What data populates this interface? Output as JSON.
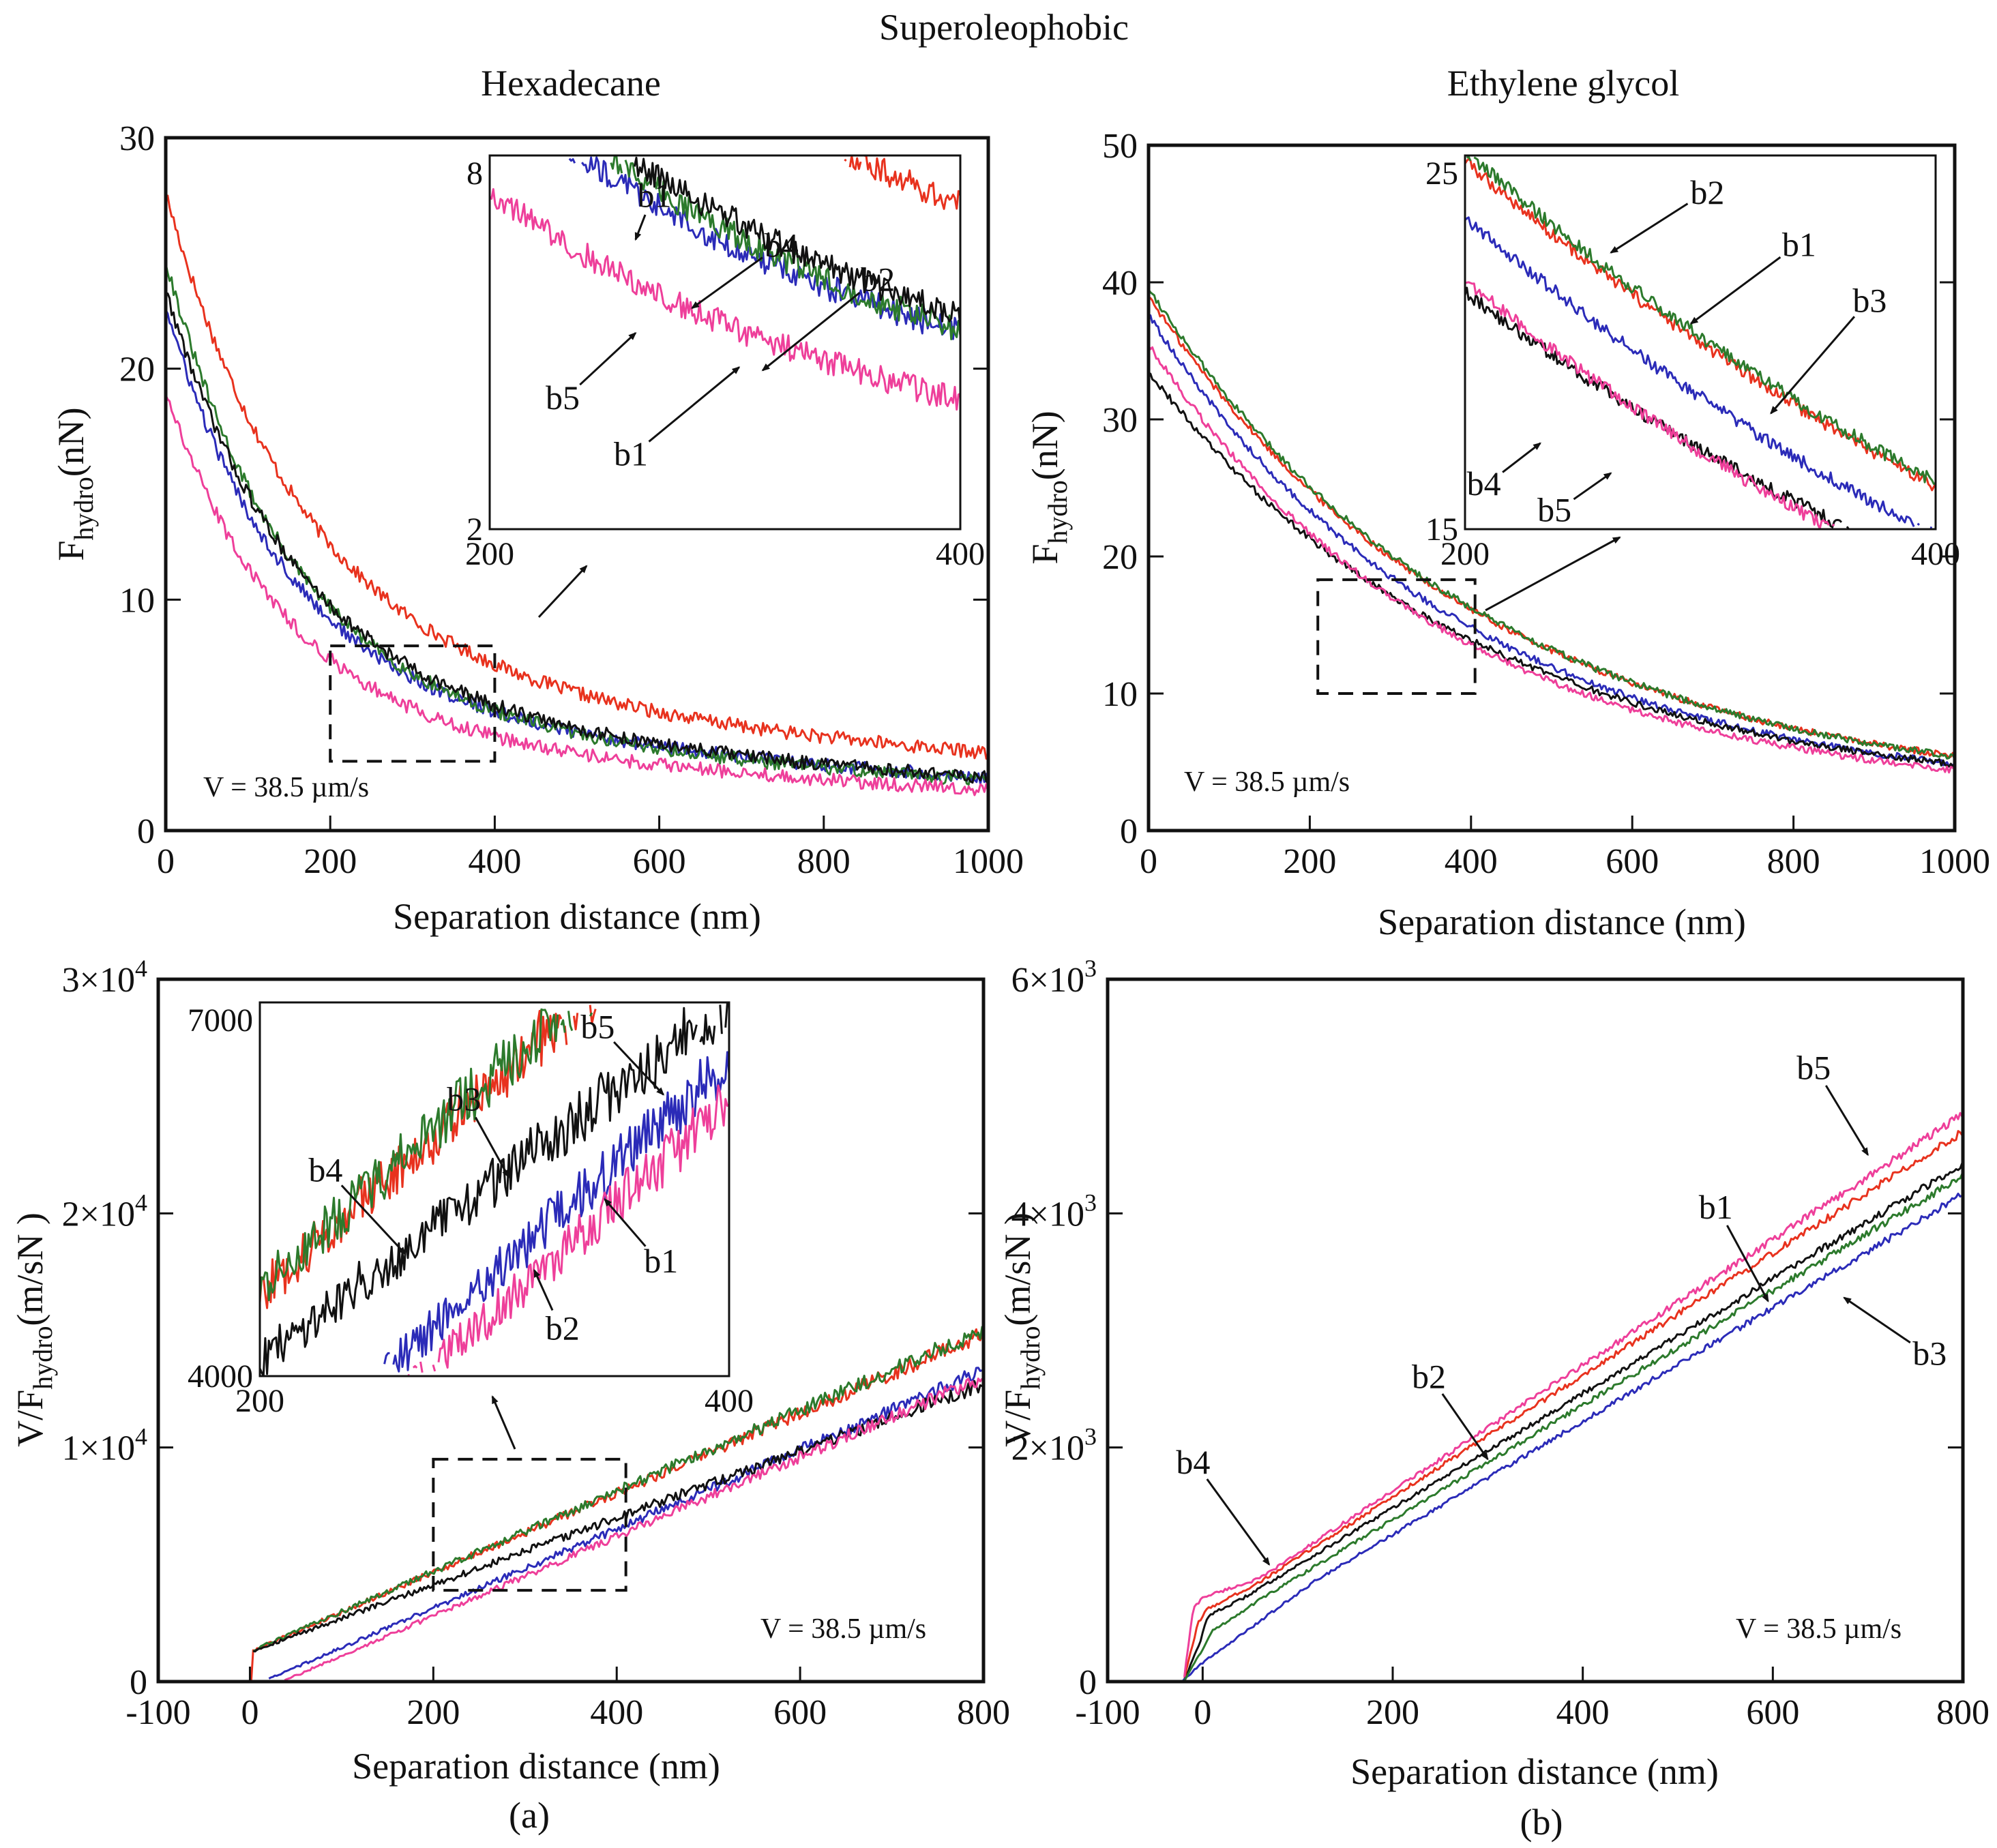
{
  "figure": {
    "title": "Superoleophobic",
    "panel_labels": [
      "(a)",
      "(b)"
    ]
  },
  "chart_data": [
    {
      "type": "line",
      "id": "top-left",
      "title": "Hexadecane",
      "xlabel": "Separation distance (nm)",
      "ylabel_main": "F",
      "ylabel_sub": "hydro",
      "ylabel_unit": "(nN)",
      "xlim": [
        0,
        1000
      ],
      "ylim": [
        0,
        30
      ],
      "xticks": [
        0,
        200,
        400,
        600,
        800,
        1000
      ],
      "xtick_labels": [
        "0",
        "200",
        "400",
        "600",
        "800",
        "1000"
      ],
      "yticks": [
        0,
        10,
        20,
        30
      ],
      "ytick_labels": [
        "0",
        "10",
        "20",
        "30"
      ],
      "annotation": "V = 38.5  µm/s",
      "zoom_box": {
        "x": [
          200,
          400
        ],
        "y": [
          3,
          8
        ]
      },
      "series": [
        {
          "name": "b1",
          "color": "#e8321e",
          "model": "decay",
          "params": [
            20.2,
            0.006,
            7.4,
            7.1,
            0.0008,
            0.3
          ]
        },
        {
          "name": "b2",
          "color": "#2b2bb8",
          "model": "decay",
          "params": [
            16.5,
            0.007,
            6.2,
            6.7,
            0.001,
            0.3
          ]
        },
        {
          "name": "b3",
          "color": "#2c7a2c",
          "model": "decay",
          "params": [
            18.8,
            0.0068,
            5.9,
            7.2,
            0.001,
            0.3
          ]
        },
        {
          "name": "b4",
          "color": "#111111",
          "model": "decay",
          "params": [
            17.2,
            0.0065,
            6.2,
            6.8,
            0.001,
            0.3
          ]
        },
        {
          "name": "b5",
          "color": "#ee3f9a",
          "model": "decay",
          "params": [
            14.2,
            0.007,
            4.8,
            6.9,
            0.001,
            0.3
          ]
        }
      ],
      "inset": {
        "xlim": [
          200,
          400
        ],
        "ylim": [
          2,
          8
        ],
        "xticks": [
          200,
          400
        ],
        "xtick_labels": [
          "200",
          "400"
        ],
        "yticks": [
          2,
          8
        ],
        "ytick_labels": [
          "2",
          "8"
        ],
        "labels": [
          {
            "text": "b1",
            "at": [
              270,
              7.35
            ],
            "tip": [
              262,
              6.65
            ]
          },
          {
            "text": "b4",
            "at": [
              324,
              6.55
            ],
            "tip": [
              286,
              5.55
            ]
          },
          {
            "text": "b2",
            "at": [
              365,
              6.0
            ],
            "tip": [
              316,
              4.55
            ]
          },
          {
            "text": "b5",
            "at": [
              231,
              4.1
            ],
            "tip": [
              262,
              5.15
            ]
          },
          {
            "text": "b1",
            "at": [
              260,
              3.2
            ],
            "tip": [
              306,
              4.6
            ]
          }
        ]
      }
    },
    {
      "type": "line",
      "id": "top-right",
      "title": "Ethylene glycol",
      "xlabel": "Separation distance (nm)",
      "ylabel_main": "F",
      "ylabel_sub": "hydro",
      "ylabel_unit": "(nN)",
      "xlim": [
        0,
        1000
      ],
      "ylim": [
        0,
        50
      ],
      "xticks": [
        0,
        200,
        400,
        600,
        800,
        1000
      ],
      "xtick_labels": [
        "0",
        "200",
        "400",
        "600",
        "800",
        "1000"
      ],
      "yticks": [
        0,
        10,
        20,
        30,
        40,
        50
      ],
      "ytick_labels": [
        "0",
        "10",
        "20",
        "30",
        "40",
        "50"
      ],
      "annotation": "V = 38.5  µm/s",
      "zoom_box": {
        "x": [
          210,
          405
        ],
        "y": [
          10,
          18.3
        ]
      },
      "series": [
        {
          "name": "b1",
          "color": "#e8321e",
          "model": "decay",
          "params": [
            39.0,
            0.0024,
            0,
            0,
            0,
            0.25
          ]
        },
        {
          "name": "b2",
          "color": "#2c7a2c",
          "model": "decay",
          "params": [
            39.6,
            0.00242,
            0,
            0,
            0,
            0.25
          ]
        },
        {
          "name": "b3",
          "color": "#2b2bb8",
          "model": "decay",
          "params": [
            37.6,
            0.00254,
            0,
            0,
            0,
            0.25
          ]
        },
        {
          "name": "b4",
          "color": "#111111",
          "model": "decay",
          "params": [
            33.5,
            0.00243,
            0,
            0,
            0,
            0.25
          ]
        },
        {
          "name": "b5",
          "color": "#ee3f9a",
          "model": "decay",
          "params": [
            35.5,
            0.00264,
            0,
            0,
            0,
            0.25
          ]
        }
      ],
      "inset": {
        "xlim": [
          200,
          400
        ],
        "ylim": [
          15,
          25
        ],
        "xticks": [
          200,
          400
        ],
        "xtick_labels": [
          "200",
          "400"
        ],
        "yticks": [
          15,
          25
        ],
        "ytick_labels": [
          "15",
          "25"
        ],
        "labels": [
          {
            "text": "b2",
            "at": [
              303,
              24.0
            ],
            "tip": [
              262,
              22.4
            ]
          },
          {
            "text": "b1",
            "at": [
              342,
              22.6
            ],
            "tip": [
              296,
              20.5
            ]
          },
          {
            "text": "b3",
            "at": [
              372,
              21.1
            ],
            "tip": [
              330,
              18.1
            ]
          },
          {
            "text": "b4",
            "at": [
              208,
              16.2
            ],
            "tip": [
              232,
              17.3
            ]
          },
          {
            "text": "b5",
            "at": [
              238,
              15.5
            ],
            "tip": [
              262,
              16.5
            ]
          }
        ]
      }
    },
    {
      "type": "line",
      "id": "bottom-left",
      "xlabel": "Separation distance (nm)",
      "ylabel_main": "V/F",
      "ylabel_sub": "hydro",
      "ylabel_unit": "(m/sN )",
      "xlim": [
        -100,
        800
      ],
      "ylim": [
        0,
        30000
      ],
      "xticks": [
        -100,
        0,
        200,
        400,
        600,
        800
      ],
      "xtick_labels": [
        "-100",
        "0",
        "200",
        "400",
        "600",
        "800"
      ],
      "yticks": [
        0,
        10000,
        20000,
        30000
      ],
      "ytick_labels": [
        "0",
        "1×10",
        "2×10",
        "3×10"
      ],
      "ytick_exponent": "4",
      "annotation": "V = 38.5  µm/s",
      "zoom_box": {
        "x": [
          200,
          410
        ],
        "y": [
          3900,
          9500
        ]
      },
      "series": [
        {
          "name": "b1",
          "color": "#e8321e",
          "model": "linear",
          "params": [
            2,
            1300,
            17.0,
            300,
            0.022
          ]
        },
        {
          "name": "b2",
          "color": "#2b2bb8",
          "model": "linear",
          "params": [
            20,
            100,
            16.9,
            300,
            0.022
          ]
        },
        {
          "name": "b3",
          "color": "#2c7a2c",
          "model": "linear",
          "params": [
            2,
            1300,
            17.2,
            300,
            0.022
          ]
        },
        {
          "name": "b4",
          "color": "#111111",
          "model": "linear",
          "params": [
            2,
            1300,
            14.3,
            300,
            0.022
          ]
        },
        {
          "name": "b5",
          "color": "#ee3f9a",
          "model": "linear",
          "params": [
            35,
            0,
            17.0,
            300,
            0.022
          ]
        }
      ],
      "inset": {
        "xlim": [
          200,
          400
        ],
        "ylim": [
          4000,
          7000
        ],
        "xticks": [
          200,
          400
        ],
        "xtick_labels": [
          "200",
          "400"
        ],
        "yticks": [
          4000,
          7000
        ],
        "ytick_labels": [
          "4000",
          "7000"
        ],
        "labels": [
          {
            "text": "b4",
            "at": [
              228,
              5650
            ],
            "tip": [
              262,
              4980
            ]
          },
          {
            "text": "b3",
            "at": [
              287,
              6220
            ],
            "tip": [
              306,
              5600
            ]
          },
          {
            "text": "b5",
            "at": [
              344,
              6800
            ],
            "tip": [
              372,
              6260
            ]
          },
          {
            "text": "b1",
            "at": [
              371,
              4920
            ],
            "tip": [
              347,
              5420
            ]
          },
          {
            "text": "b2",
            "at": [
              329,
              4380
            ],
            "tip": [
              317,
              4850
            ]
          }
        ]
      }
    },
    {
      "type": "line",
      "id": "bottom-right",
      "xlabel": "Separation distance (nm)",
      "ylabel_main": "V/F",
      "ylabel_sub": "hydro",
      "ylabel_unit": "(m/sN )",
      "xlim": [
        -100,
        800
      ],
      "ylim": [
        0,
        6000
      ],
      "xticks": [
        -100,
        0,
        200,
        400,
        600,
        800
      ],
      "xtick_labels": [
        "-100",
        "0",
        "200",
        "400",
        "600",
        "800"
      ],
      "yticks": [
        0,
        2000,
        4000,
        6000
      ],
      "ytick_labels": [
        "0",
        "2×10",
        "4×10",
        "6×10"
      ],
      "ytick_exponent": "3",
      "annotation": "V = 38.5  µm/s",
      "series": [
        {
          "name": "b1",
          "color": "#111111",
          "kinks": [
            [
              -20,
              0
            ],
            [
              -2,
              350
            ],
            [
              5,
              560
            ],
            [
              40,
              700
            ],
            [
              800,
              4420
            ]
          ]
        },
        {
          "name": "b2",
          "color": "#e8321e",
          "kinks": [
            [
              -20,
              0
            ],
            [
              -5,
              500
            ],
            [
              5,
              620
            ],
            [
              60,
              850
            ],
            [
              800,
              4700
            ]
          ]
        },
        {
          "name": "b3",
          "color": "#2b2bb8",
          "kinks": [
            [
              -22,
              0
            ],
            [
              -2,
              150
            ],
            [
              15,
              250
            ],
            [
              120,
              870
            ],
            [
              800,
              4160
            ]
          ]
        },
        {
          "name": "b4",
          "color": "#2c7a2c",
          "kinks": [
            [
              -20,
              0
            ],
            [
              -2,
              250
            ],
            [
              10,
              430
            ],
            [
              60,
              700
            ],
            [
              800,
              4320
            ]
          ]
        },
        {
          "name": "b5",
          "color": "#ee3f9a",
          "kinks": [
            [
              -20,
              0
            ],
            [
              -10,
              620
            ],
            [
              0,
              720
            ],
            [
              60,
              880
            ],
            [
              800,
              4850
            ]
          ]
        }
      ],
      "labels": [
        {
          "text": "b5",
          "at": [
            643,
            5240
          ],
          "tip": [
            700,
            4500
          ]
        },
        {
          "text": "b1",
          "at": [
            540,
            4050
          ],
          "tip": [
            595,
            3250
          ]
        },
        {
          "text": "b2",
          "at": [
            238,
            2600
          ],
          "tip": [
            300,
            1900
          ]
        },
        {
          "text": "b3",
          "at": [
            765,
            2800
          ],
          "tip": [
            675,
            3280
          ]
        },
        {
          "text": "b4",
          "at": [
            -10,
            1870
          ],
          "tip": [
            70,
            1000
          ]
        }
      ]
    }
  ]
}
